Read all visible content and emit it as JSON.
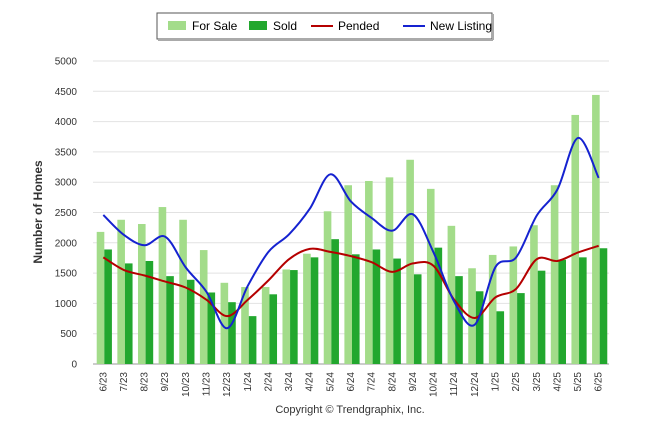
{
  "chart_data": {
    "type": "bar",
    "ylabel": "Number of Homes",
    "ylim": [
      0,
      5000
    ],
    "yticks": [
      0,
      500,
      1000,
      1500,
      2000,
      2500,
      3000,
      3500,
      4000,
      4500,
      5000
    ],
    "grid": true,
    "legend_position": "top-center",
    "copyright": "Copyright © Trendgraphix, Inc.",
    "categories": [
      "6/23",
      "7/23",
      "8/23",
      "9/23",
      "10/23",
      "11/23",
      "12/23",
      "1/24",
      "2/24",
      "3/24",
      "4/24",
      "5/24",
      "6/24",
      "7/24",
      "8/24",
      "9/24",
      "10/24",
      "11/24",
      "12/24",
      "1/25",
      "2/25",
      "3/25",
      "4/25",
      "5/25",
      "6/25"
    ],
    "series": [
      {
        "name": "For Sale",
        "kind": "bar",
        "color": "#a3dc8a",
        "values": [
          2180,
          2380,
          2310,
          2590,
          2380,
          1880,
          1340,
          1270,
          1270,
          1560,
          1820,
          2520,
          2950,
          3020,
          3080,
          3370,
          2890,
          2280,
          1580,
          1800,
          1940,
          2290,
          2950,
          4110,
          4440
        ]
      },
      {
        "name": "Sold",
        "kind": "bar",
        "color": "#22a72e",
        "values": [
          1890,
          1660,
          1700,
          1450,
          1390,
          1180,
          1020,
          790,
          1150,
          1550,
          1760,
          2060,
          1810,
          1890,
          1740,
          1480,
          1920,
          1450,
          1200,
          870,
          1170,
          1540,
          1720,
          1760,
          1910
        ]
      },
      {
        "name": "Pended",
        "kind": "line",
        "color": "#b50000",
        "values": [
          1760,
          1550,
          1460,
          1360,
          1260,
          1060,
          790,
          1060,
          1380,
          1730,
          1900,
          1850,
          1780,
          1680,
          1520,
          1660,
          1620,
          1060,
          760,
          1100,
          1240,
          1730,
          1700,
          1840,
          1950
        ]
      },
      {
        "name": "New Listing",
        "kind": "line",
        "color": "#1522d0",
        "values": [
          2460,
          2130,
          1960,
          2100,
          1590,
          1190,
          590,
          1290,
          1850,
          2140,
          2560,
          3130,
          2680,
          2410,
          2200,
          2470,
          1840,
          1030,
          650,
          1600,
          1760,
          2450,
          2880,
          3730,
          3070
        ]
      }
    ]
  }
}
